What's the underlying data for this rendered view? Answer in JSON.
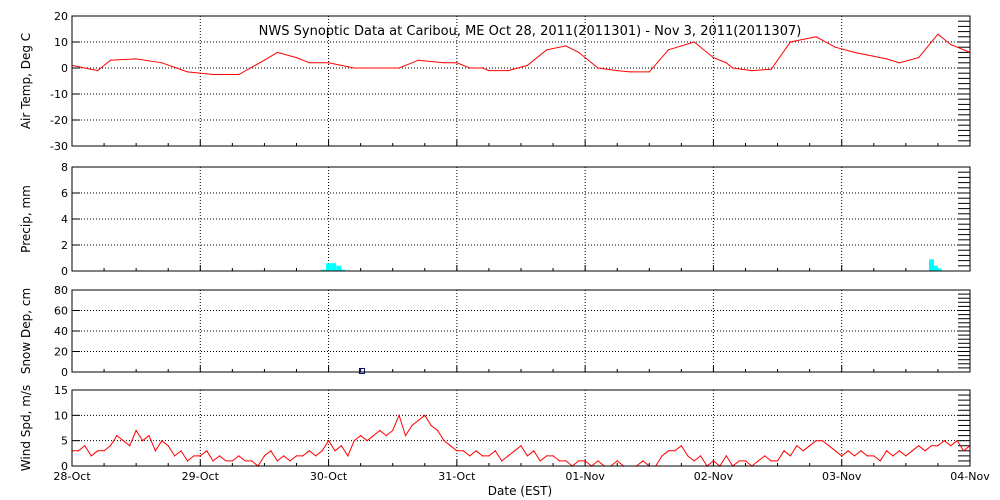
{
  "title": "NWS Synoptic Data at Caribou, ME   Oct 28, 2011(2011301) - Nov  3, 2011(2011307)",
  "xlabel": "Date (EST)",
  "colors": {
    "temp": "#ff0000",
    "precip": "#00ffff",
    "snow": "#000080",
    "wind": "#ff0000",
    "axes": "#000000",
    "background": "#ffffff"
  },
  "chart_data": [
    {
      "type": "line",
      "ylabel": "Air Temp, Deg C",
      "ylim": [
        -30,
        20
      ],
      "yticks": [
        "20",
        "10",
        "0",
        "-10",
        "-20",
        "-30"
      ],
      "x_unit": "days since Oct 28 00:00 EST",
      "x": [
        0,
        0.1,
        0.2,
        0.3,
        0.5,
        0.7,
        0.9,
        1.1,
        1.3,
        1.5,
        1.6,
        1.75,
        1.85,
        2.0,
        2.2,
        2.3,
        2.55,
        2.7,
        2.9,
        3.0,
        3.1,
        3.2,
        3.25,
        3.4,
        3.55,
        3.7,
        3.85,
        3.95,
        4.1,
        4.25,
        4.35,
        4.5,
        4.65,
        4.85,
        5.0,
        5.1,
        5.15,
        5.3,
        5.45,
        5.6,
        5.8,
        5.95,
        6.1,
        6.2,
        6.35,
        6.45,
        6.6,
        6.75,
        6.85,
        7.0
      ],
      "y": [
        1,
        0,
        -1,
        3,
        3.5,
        2,
        -1.5,
        -2.5,
        -2.5,
        3,
        6,
        4,
        2,
        2,
        0,
        0,
        0,
        3,
        2,
        2,
        0,
        0,
        -1,
        -1,
        1,
        7,
        8.5,
        6,
        0,
        -1,
        -1.5,
        -1.5,
        7,
        10,
        4,
        2,
        0,
        -1,
        -0.5,
        10,
        12,
        8,
        6,
        5,
        3.5,
        2,
        4,
        13,
        9,
        6
      ],
      "series": [
        {
          "name": "",
          "color": "#ff0000"
        }
      ]
    },
    {
      "type": "bar",
      "ylabel": "Precip, mm",
      "ylim": [
        0,
        8
      ],
      "yticks": [
        "8",
        "6",
        "4",
        "2",
        "0"
      ],
      "x_unit": "days since Oct 28 00:00 EST",
      "x": [
        1.96,
        2.0,
        2.04,
        2.08,
        2.11,
        6.7,
        6.73,
        6.76
      ],
      "values": [
        0.1,
        0.6,
        0.6,
        0.4,
        0.1,
        0.9,
        0.4,
        0.2
      ]
    },
    {
      "type": "scatter",
      "ylabel": "Snow Dep, cm",
      "ylim": [
        0,
        80
      ],
      "yticks": [
        "80",
        "60",
        "40",
        "20",
        "0"
      ],
      "x_unit": "days since Oct 28 00:00 EST",
      "x": [
        2.26
      ],
      "y": [
        1
      ]
    },
    {
      "type": "line",
      "ylabel": "Wind Spd, m/s",
      "ylim": [
        0,
        15
      ],
      "yticks": [
        "15",
        "10",
        "5",
        "0"
      ],
      "x_unit": "days since Oct 28 00:00 EST",
      "x": [
        0,
        0.05,
        0.1,
        0.15,
        0.2,
        0.25,
        0.3,
        0.35,
        0.4,
        0.45,
        0.5,
        0.55,
        0.6,
        0.65,
        0.7,
        0.75,
        0.8,
        0.85,
        0.9,
        0.95,
        1.0,
        1.05,
        1.1,
        1.15,
        1.2,
        1.25,
        1.3,
        1.35,
        1.4,
        1.45,
        1.5,
        1.55,
        1.6,
        1.65,
        1.7,
        1.75,
        1.8,
        1.85,
        1.9,
        1.95,
        2.0,
        2.05,
        2.1,
        2.15,
        2.2,
        2.25,
        2.3,
        2.35,
        2.4,
        2.45,
        2.5,
        2.55,
        2.6,
        2.65,
        2.7,
        2.75,
        2.8,
        2.85,
        2.9,
        2.95,
        3.0,
        3.05,
        3.1,
        3.15,
        3.2,
        3.25,
        3.3,
        3.35,
        3.4,
        3.45,
        3.5,
        3.55,
        3.6,
        3.65,
        3.7,
        3.75,
        3.8,
        3.85,
        3.9,
        3.95,
        4.0,
        4.05,
        4.1,
        4.15,
        4.2,
        4.25,
        4.3,
        4.35,
        4.4,
        4.45,
        4.5,
        4.55,
        4.6,
        4.65,
        4.7,
        4.75,
        4.8,
        4.85,
        4.9,
        4.95,
        5.0,
        5.05,
        5.1,
        5.15,
        5.2,
        5.25,
        5.3,
        5.35,
        5.4,
        5.45,
        5.5,
        5.55,
        5.6,
        5.65,
        5.7,
        5.75,
        5.8,
        5.85,
        5.9,
        5.95,
        6.0,
        6.05,
        6.1,
        6.15,
        6.2,
        6.25,
        6.3,
        6.35,
        6.4,
        6.45,
        6.5,
        6.55,
        6.6,
        6.65,
        6.7,
        6.75,
        6.8,
        6.85,
        6.9,
        6.95,
        7.0
      ],
      "y": [
        3,
        3,
        4,
        2,
        3,
        3,
        4,
        6,
        5,
        4,
        7,
        5,
        6,
        3,
        5,
        4,
        2,
        3,
        1,
        2,
        2,
        3,
        1,
        2,
        1,
        1,
        2,
        1,
        1,
        0,
        2,
        3,
        1,
        2,
        1,
        2,
        2,
        3,
        2,
        3,
        5,
        3,
        4,
        2,
        5,
        6,
        5,
        6,
        7,
        6,
        7,
        10,
        6,
        8,
        9,
        10,
        8,
        7,
        5,
        4,
        3,
        3,
        2,
        3,
        2,
        2,
        3,
        1,
        2,
        3,
        4,
        2,
        3,
        1,
        2,
        2,
        1,
        1,
        0,
        1,
        1,
        0,
        1,
        0,
        0,
        1,
        0,
        0,
        0,
        1,
        0,
        0,
        2,
        3,
        3,
        4,
        2,
        1,
        2,
        0,
        1,
        0,
        2,
        0,
        1,
        1,
        0,
        1,
        2,
        1,
        1,
        3,
        2,
        4,
        3,
        4,
        5,
        5,
        4,
        3,
        2,
        3,
        2,
        3,
        2,
        2,
        1,
        3,
        2,
        3,
        2,
        3,
        4,
        3,
        4,
        4,
        5,
        4,
        5,
        3,
        4
      ],
      "series": [
        {
          "name": "",
          "color": "#ff0000"
        }
      ]
    }
  ],
  "x_axis": {
    "ticks": [
      "28-Oct",
      "29-Oct",
      "30-Oct",
      "31-Oct",
      "01-Nov",
      "02-Nov",
      "03-Nov",
      "04-Nov"
    ],
    "range_days": [
      0,
      7
    ]
  }
}
